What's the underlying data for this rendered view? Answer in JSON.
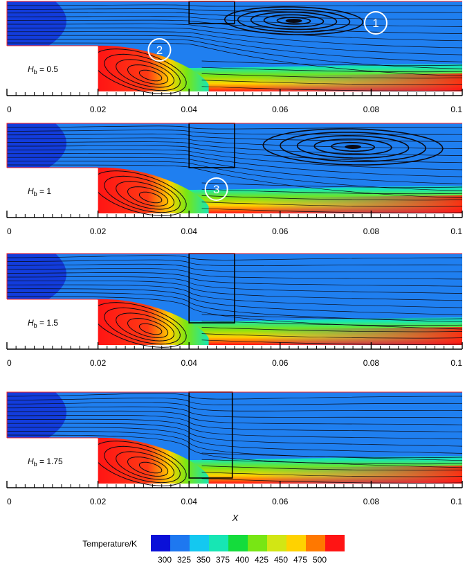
{
  "x_axis": {
    "label": "X",
    "ticks": [
      "0",
      "0.02",
      "0.04",
      "0.06",
      "0.08",
      "0.1"
    ]
  },
  "panels": [
    {
      "hb_symbol": "H",
      "hb_sub": "b",
      "hb_value": " = 0.5",
      "circle_labels": [
        "1",
        "2"
      ]
    },
    {
      "hb_symbol": "H",
      "hb_sub": "b",
      "hb_value": " = 1",
      "circle_labels": [
        "3"
      ]
    },
    {
      "hb_symbol": "H",
      "hb_sub": "b",
      "hb_value": " = 1.5",
      "circle_labels": []
    },
    {
      "hb_symbol": "H",
      "hb_sub": "b",
      "hb_value": " = 1.75",
      "circle_labels": []
    }
  ],
  "colorbar": {
    "title": "Temperature/K",
    "values": [
      "300",
      "325",
      "350",
      "375",
      "400",
      "425",
      "450",
      "475",
      "500"
    ],
    "colors": [
      "#0a10d8",
      "#1e78f0",
      "#14c8f0",
      "#17e6b4",
      "#14dc3c",
      "#78e614",
      "#d2e614",
      "#ffd200",
      "#ff7800",
      "#ff1414"
    ]
  },
  "colors": {
    "fluid_base": "#1f7ff0",
    "inlet_cold": "#1030d8",
    "streamline": "#0a0a14",
    "outline": "#ff2020"
  }
}
